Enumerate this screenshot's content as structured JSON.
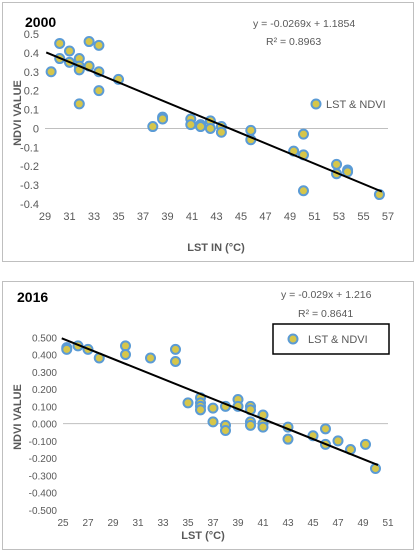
{
  "chart_data": [
    {
      "type": "scatter",
      "title": "2000",
      "xlabel": "LST IN (°C)",
      "ylabel": "NDVI VALUE",
      "xlim": [
        29,
        57
      ],
      "ylim": [
        -0.4,
        0.5
      ],
      "x_ticks": [
        "29",
        "31",
        "33",
        "35",
        "37",
        "39",
        "41",
        "43",
        "45",
        "47",
        "49",
        "51",
        "53",
        "55",
        "57"
      ],
      "y_ticks": [
        "-0.4",
        "-0.3",
        "-0.2",
        "-0.1",
        "0",
        "0.1",
        "0.2",
        "0.3",
        "0.4",
        "0.5"
      ],
      "series": [
        {
          "name": "LST & NDVI",
          "points": [
            [
              29.5,
              0.3
            ],
            [
              30.2,
              0.45
            ],
            [
              30.2,
              0.37
            ],
            [
              31,
              0.41
            ],
            [
              31,
              0.35
            ],
            [
              31.8,
              0.37
            ],
            [
              31.8,
              0.33
            ],
            [
              31.8,
              0.31
            ],
            [
              31.8,
              0.13
            ],
            [
              32.6,
              0.46
            ],
            [
              32.6,
              0.33
            ],
            [
              33.4,
              0.44
            ],
            [
              33.4,
              0.3
            ],
            [
              33.4,
              0.2
            ],
            [
              35,
              0.26
            ],
            [
              37.8,
              0.01
            ],
            [
              38.6,
              0.06
            ],
            [
              38.6,
              0.05
            ],
            [
              40.9,
              0.05
            ],
            [
              40.9,
              0.02
            ],
            [
              41.7,
              0.02
            ],
            [
              41.7,
              0.01
            ],
            [
              42.5,
              0.04
            ],
            [
              42.5,
              0.0
            ],
            [
              43.4,
              0.01
            ],
            [
              43.4,
              -0.02
            ],
            [
              45.8,
              -0.01
            ],
            [
              45.8,
              -0.06
            ],
            [
              49.3,
              -0.12
            ],
            [
              50.1,
              -0.03
            ],
            [
              50.1,
              -0.14
            ],
            [
              50.1,
              -0.33
            ],
            [
              52.8,
              -0.19
            ],
            [
              52.8,
              -0.24
            ],
            [
              53.7,
              -0.22
            ],
            [
              53.7,
              -0.23
            ],
            [
              56.3,
              -0.35
            ]
          ]
        }
      ],
      "trendline": {
        "slope": -0.0269,
        "intercept": 1.1854
      },
      "equation": "y = -0.0269x + 1.1854",
      "r2": "R² = 0.8963",
      "legend": {
        "label": "LST & NDVI",
        "position": "right"
      },
      "grid": false
    },
    {
      "type": "scatter",
      "title": "2016",
      "xlabel": "LST (°C)",
      "ylabel": "NDVI VALUE",
      "xlim": [
        25,
        51
      ],
      "ylim": [
        -0.5,
        0.6
      ],
      "x_ticks": [
        "25",
        "27",
        "29",
        "31",
        "33",
        "35",
        "37",
        "39",
        "41",
        "43",
        "45",
        "47",
        "49",
        "51"
      ],
      "y_ticks": [
        "-0.500",
        "-0.400",
        "-0.300",
        "-0.200",
        "-0.100",
        "0.000",
        "0.100",
        "0.200",
        "0.300",
        "0.400",
        "0.500"
      ],
      "series": [
        {
          "name": "LST & NDVI",
          "points": [
            [
              25.3,
              0.44
            ],
            [
              25.3,
              0.43
            ],
            [
              26.2,
              0.45
            ],
            [
              27,
              0.43
            ],
            [
              27.9,
              0.38
            ],
            [
              30,
              0.45
            ],
            [
              30,
              0.4
            ],
            [
              32,
              0.38
            ],
            [
              34,
              0.43
            ],
            [
              34,
              0.36
            ],
            [
              35,
              0.12
            ],
            [
              36,
              0.15
            ],
            [
              36,
              0.12
            ],
            [
              36,
              0.1
            ],
            [
              36,
              0.08
            ],
            [
              37,
              0.09
            ],
            [
              37,
              0.01
            ],
            [
              38,
              0.1
            ],
            [
              38,
              -0.01
            ],
            [
              38,
              -0.04
            ],
            [
              39,
              0.14
            ],
            [
              39,
              0.1
            ],
            [
              40,
              0.1
            ],
            [
              40,
              0.08
            ],
            [
              40,
              0.01
            ],
            [
              40,
              -0.01
            ],
            [
              41,
              0.05
            ],
            [
              41,
              0.0
            ],
            [
              41,
              -0.02
            ],
            [
              43,
              -0.02
            ],
            [
              43,
              -0.09
            ],
            [
              45,
              -0.07
            ],
            [
              46,
              -0.03
            ],
            [
              46,
              -0.12
            ],
            [
              47,
              -0.1
            ],
            [
              48,
              -0.15
            ],
            [
              49.2,
              -0.12
            ],
            [
              50,
              -0.26
            ]
          ]
        }
      ],
      "trendline": {
        "slope": -0.029,
        "intercept": 1.216
      },
      "equation": "y = -0.029x + 1.216",
      "r2": "R² = 0.8641",
      "legend": {
        "label": "LST & NDVI",
        "position": "top-right"
      },
      "grid": false
    }
  ],
  "style": {
    "marker_fill": "#d6c64a",
    "marker_stroke": "#5b9bd5",
    "trend_color": "#000000",
    "axis_color": "#bfbfbf",
    "text_color": "#595959"
  }
}
